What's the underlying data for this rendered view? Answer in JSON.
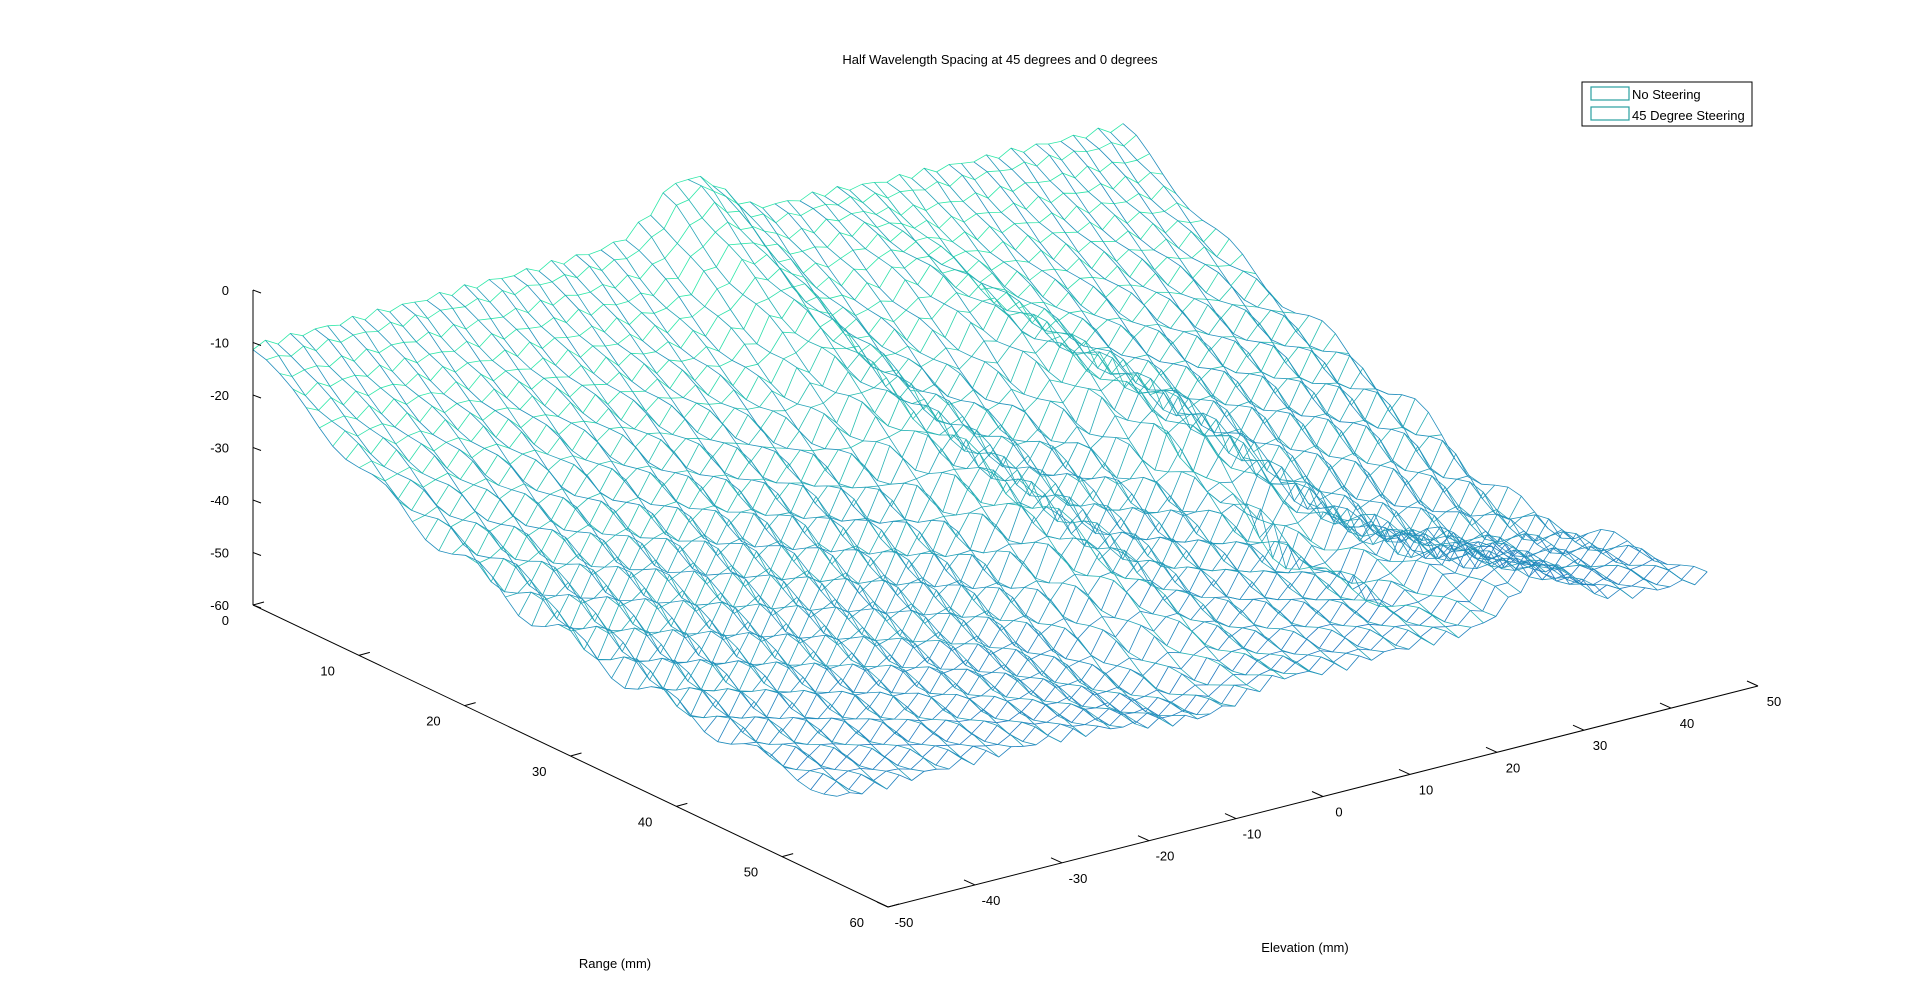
{
  "chart_data": {
    "type": "mesh3d",
    "title": "Half Wavelength Spacing at 45 degrees and 0 degrees",
    "xlabel": "Elevation (mm)",
    "ylabel": "Range (mm)",
    "zlabel": "",
    "xlim": [
      -50,
      50
    ],
    "ylim": [
      0,
      60
    ],
    "zlim": [
      -60,
      0
    ],
    "x_ticks": [
      "-50",
      "-40",
      "-30",
      "-20",
      "-10",
      "0",
      "10",
      "20",
      "30",
      "40",
      "50"
    ],
    "y_ticks": [
      "0",
      "10",
      "20",
      "30",
      "40",
      "50",
      "60"
    ],
    "z_ticks": [
      "0",
      "-10",
      "-20",
      "-30",
      "-40",
      "-50",
      "-60"
    ],
    "grid": false,
    "legend_position": "top-right",
    "colormap": [
      "#1b55c8",
      "#2ee8a8"
    ],
    "series": [
      {
        "name": "No Steering",
        "color": "#2a9fa0"
      },
      {
        "name": "45 Degree Steering",
        "color": "#2a9fa0"
      }
    ]
  }
}
